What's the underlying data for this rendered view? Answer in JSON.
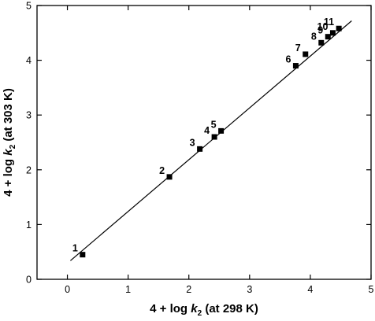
{
  "chart_data": {
    "type": "scatter",
    "xlabel_parts": {
      "prefix": "4 + log ",
      "var": "k",
      "sub": "2",
      "suffix": " (at 298 K)"
    },
    "ylabel_parts": {
      "prefix": "4 + log ",
      "var": "k",
      "sub": "2",
      "suffix": " (at 303 K)"
    },
    "xlim": [
      -0.5,
      5
    ],
    "ylim": [
      0,
      5
    ],
    "xticks": [
      0,
      1,
      2,
      3,
      4,
      5
    ],
    "yticks": [
      0,
      1,
      2,
      3,
      4,
      5
    ],
    "xtick_labels": [
      "0",
      "1",
      "2",
      "3",
      "4",
      "5"
    ],
    "ytick_labels": [
      "0",
      "1",
      "2",
      "3",
      "4",
      "5"
    ],
    "points": [
      {
        "label": "1",
        "x": 0.25,
        "y": 0.45
      },
      {
        "label": "2",
        "x": 1.68,
        "y": 1.87
      },
      {
        "label": "3",
        "x": 2.18,
        "y": 2.38
      },
      {
        "label": "4",
        "x": 2.42,
        "y": 2.6
      },
      {
        "label": "5",
        "x": 2.53,
        "y": 2.71
      },
      {
        "label": "6",
        "x": 3.76,
        "y": 3.9
      },
      {
        "label": "7",
        "x": 3.92,
        "y": 4.11
      },
      {
        "label": "8",
        "x": 4.18,
        "y": 4.32
      },
      {
        "label": "9",
        "x": 4.29,
        "y": 4.43
      },
      {
        "label": "10",
        "x": 4.37,
        "y": 4.5
      },
      {
        "label": "11",
        "x": 4.47,
        "y": 4.58
      }
    ],
    "fit_line": {
      "x": [
        0.05,
        4.68
      ],
      "y": [
        0.34,
        4.72
      ]
    },
    "grid": false
  }
}
